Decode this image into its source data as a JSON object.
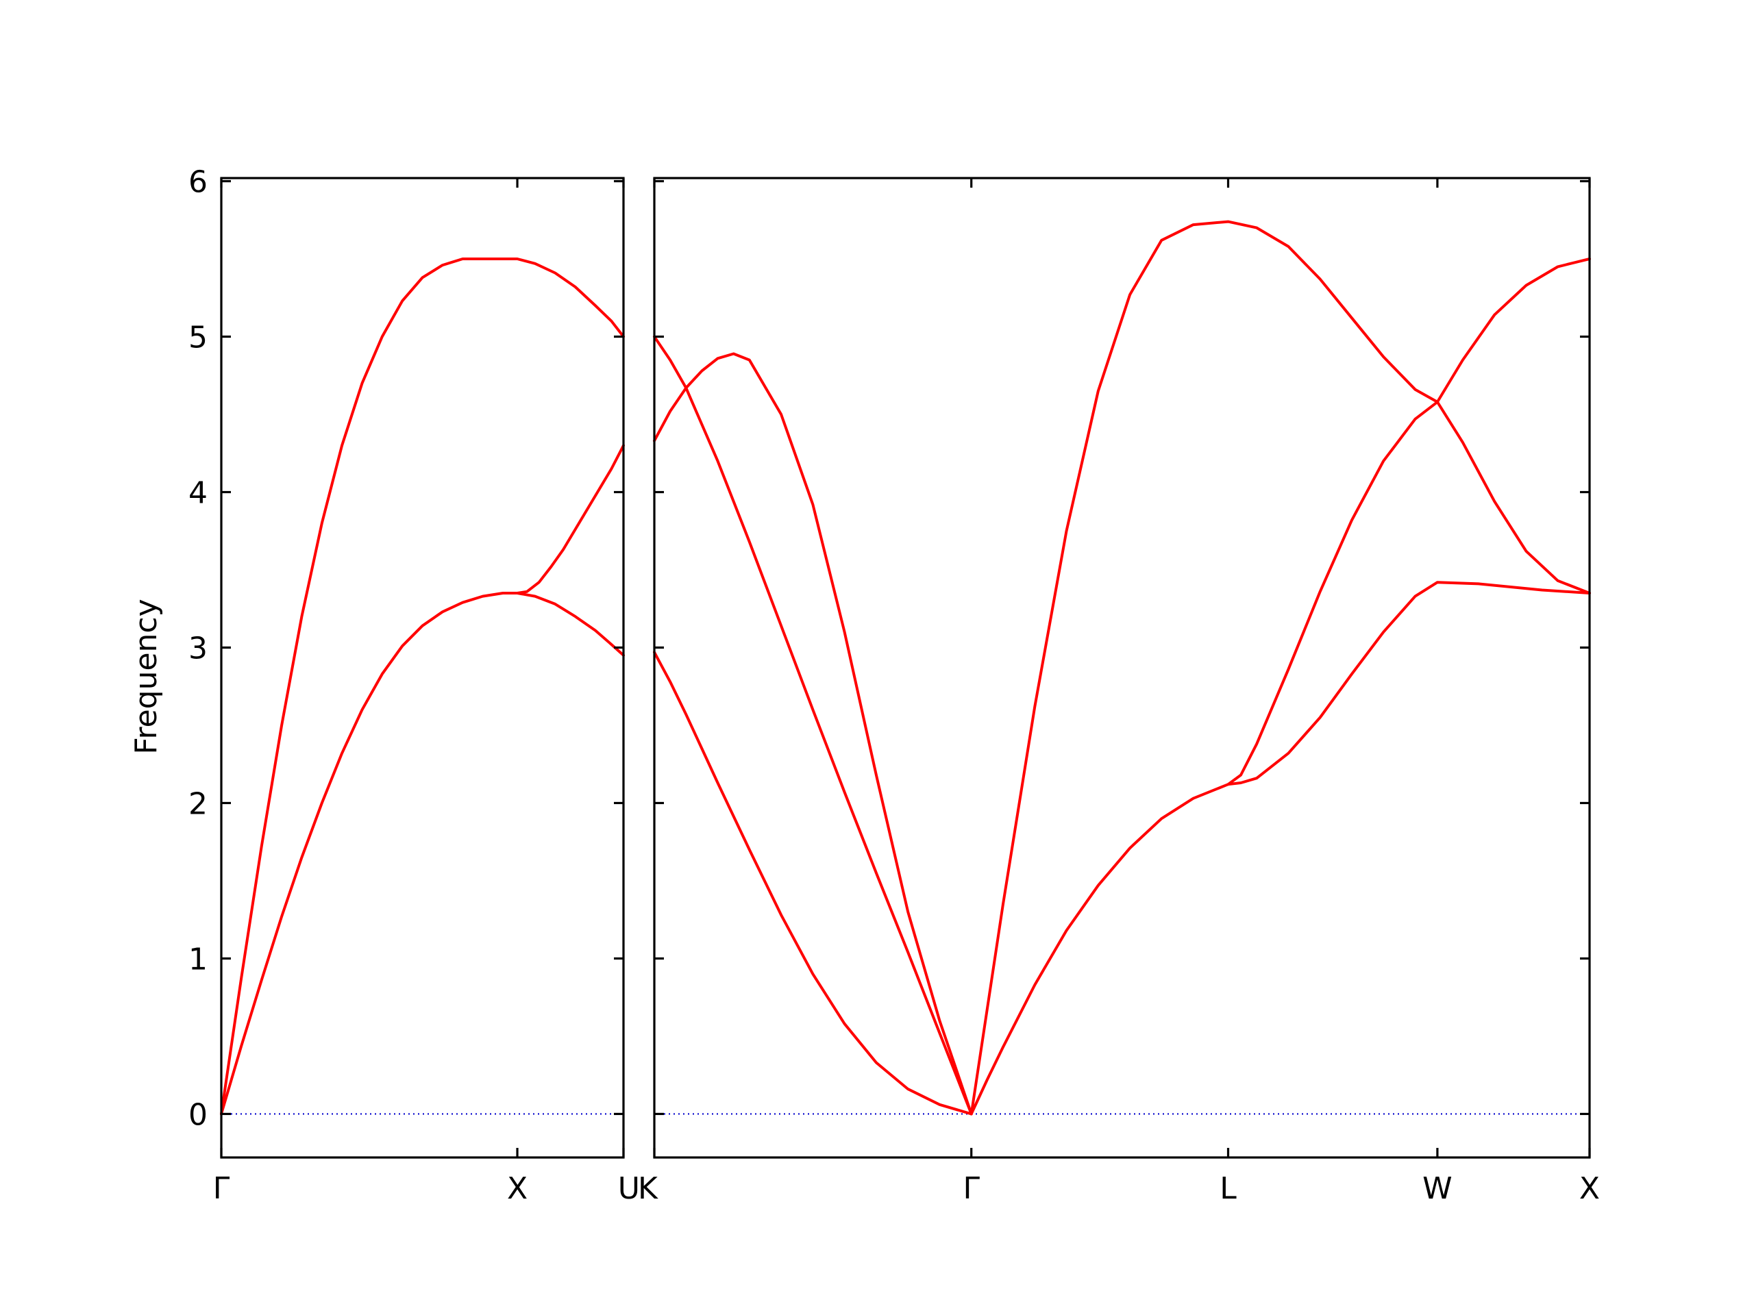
{
  "chart_data": {
    "type": "line",
    "title": "",
    "ylabel": "Frequency",
    "xlabel": "",
    "ylim": [
      -0.28,
      6.02
    ],
    "yticks": [
      0,
      1,
      2,
      3,
      4,
      5,
      6
    ],
    "grid": false,
    "legend": "none",
    "colors": {
      "band": "#ff0000",
      "zero_line": "#0000cc"
    },
    "segments": [
      {
        "xlim": [
          0,
          1.0
        ],
        "xticks": [
          {
            "x": 0,
            "label": "Γ"
          },
          {
            "x": 0.736,
            "label": "X"
          },
          {
            "x": 1.0,
            "label": "U"
          }
        ],
        "series": [
          {
            "points": [
              [
                0,
                0
              ],
              [
                0.05,
                0.44
              ],
              [
                0.1,
                0.86
              ],
              [
                0.15,
                1.27
              ],
              [
                0.2,
                1.65
              ],
              [
                0.25,
                2.0
              ],
              [
                0.3,
                2.32
              ],
              [
                0.35,
                2.6
              ],
              [
                0.4,
                2.83
              ],
              [
                0.45,
                3.01
              ],
              [
                0.5,
                3.14
              ],
              [
                0.55,
                3.23
              ],
              [
                0.6,
                3.29
              ],
              [
                0.65,
                3.33
              ],
              [
                0.7,
                3.35
              ],
              [
                0.736,
                3.35
              ],
              [
                0.78,
                3.33
              ],
              [
                0.83,
                3.28
              ],
              [
                0.88,
                3.2
              ],
              [
                0.93,
                3.11
              ],
              [
                0.97,
                3.02
              ],
              [
                1.0,
                2.95
              ]
            ]
          },
          {
            "points": [
              [
                0,
                0
              ],
              [
                0.05,
                0.88
              ],
              [
                0.1,
                1.72
              ],
              [
                0.15,
                2.5
              ],
              [
                0.2,
                3.2
              ],
              [
                0.25,
                3.8
              ],
              [
                0.3,
                4.3
              ],
              [
                0.35,
                4.7
              ],
              [
                0.4,
                5.0
              ],
              [
                0.45,
                5.23
              ],
              [
                0.5,
                5.38
              ],
              [
                0.55,
                5.46
              ],
              [
                0.6,
                5.5
              ],
              [
                0.65,
                5.5
              ],
              [
                0.7,
                5.5
              ],
              [
                0.736,
                5.5
              ],
              [
                0.78,
                5.47
              ],
              [
                0.83,
                5.41
              ],
              [
                0.88,
                5.32
              ],
              [
                0.93,
                5.2
              ],
              [
                0.97,
                5.1
              ],
              [
                1.0,
                5.0
              ]
            ]
          },
          {
            "points": [
              [
                0.736,
                3.35
              ],
              [
                0.76,
                3.36
              ],
              [
                0.79,
                3.42
              ],
              [
                0.82,
                3.52
              ],
              [
                0.85,
                3.63
              ],
              [
                0.88,
                3.76
              ],
              [
                0.91,
                3.89
              ],
              [
                0.94,
                4.02
              ],
              [
                0.97,
                4.15
              ],
              [
                1.0,
                4.3
              ]
            ]
          }
        ]
      },
      {
        "xlim": [
          0,
          2.95
        ],
        "xticks": [
          {
            "x": 0,
            "label": "K"
          },
          {
            "x": 1.0,
            "label": "Γ"
          },
          {
            "x": 1.81,
            "label": "L"
          },
          {
            "x": 2.47,
            "label": "W"
          },
          {
            "x": 2.95,
            "label": "X"
          }
        ],
        "series": [
          {
            "points": [
              [
                0,
                2.97
              ],
              [
                0.05,
                2.78
              ],
              [
                0.1,
                2.57
              ],
              [
                0.15,
                2.35
              ],
              [
                0.2,
                2.13
              ],
              [
                0.3,
                1.7
              ],
              [
                0.4,
                1.28
              ],
              [
                0.5,
                0.9
              ],
              [
                0.6,
                0.58
              ],
              [
                0.7,
                0.33
              ],
              [
                0.8,
                0.16
              ],
              [
                0.9,
                0.06
              ],
              [
                1.0,
                0
              ]
            ]
          },
          {
            "points": [
              [
                0,
                5.0
              ],
              [
                0.05,
                4.85
              ],
              [
                0.1,
                4.67
              ],
              [
                0.2,
                4.2
              ],
              [
                0.3,
                3.68
              ],
              [
                0.4,
                3.14
              ],
              [
                0.5,
                2.6
              ],
              [
                0.6,
                2.07
              ],
              [
                0.7,
                1.55
              ],
              [
                0.8,
                1.04
              ],
              [
                0.9,
                0.52
              ],
              [
                1.0,
                0
              ]
            ]
          },
          {
            "points": [
              [
                0,
                4.33
              ],
              [
                0.05,
                4.52
              ],
              [
                0.1,
                4.67
              ],
              [
                0.15,
                4.78
              ],
              [
                0.2,
                4.86
              ],
              [
                0.25,
                4.89
              ],
              [
                0.3,
                4.85
              ],
              [
                0.4,
                4.5
              ],
              [
                0.5,
                3.92
              ],
              [
                0.6,
                3.1
              ],
              [
                0.7,
                2.18
              ],
              [
                0.8,
                1.3
              ],
              [
                0.9,
                0.6
              ],
              [
                0.95,
                0.3
              ],
              [
                1.0,
                0
              ]
            ]
          },
          {
            "points": [
              [
                1.0,
                0
              ],
              [
                1.05,
                0.22
              ],
              [
                1.1,
                0.43
              ],
              [
                1.2,
                0.83
              ],
              [
                1.3,
                1.18
              ],
              [
                1.4,
                1.47
              ],
              [
                1.5,
                1.71
              ],
              [
                1.6,
                1.9
              ],
              [
                1.7,
                2.03
              ],
              [
                1.81,
                2.12
              ],
              [
                1.85,
                2.13
              ],
              [
                1.9,
                2.16
              ],
              [
                2.0,
                2.32
              ],
              [
                2.1,
                2.55
              ],
              [
                2.2,
                2.83
              ],
              [
                2.3,
                3.1
              ],
              [
                2.4,
                3.33
              ],
              [
                2.47,
                3.42
              ],
              [
                2.6,
                3.41
              ],
              [
                2.8,
                3.37
              ],
              [
                2.95,
                3.35
              ]
            ]
          },
          {
            "points": [
              [
                1.81,
                2.12
              ],
              [
                1.85,
                2.18
              ],
              [
                1.9,
                2.38
              ],
              [
                2.0,
                2.86
              ],
              [
                2.1,
                3.36
              ],
              [
                2.2,
                3.82
              ],
              [
                2.3,
                4.2
              ],
              [
                2.4,
                4.47
              ],
              [
                2.47,
                4.58
              ],
              [
                2.55,
                4.85
              ],
              [
                2.65,
                5.14
              ],
              [
                2.75,
                5.33
              ],
              [
                2.85,
                5.45
              ],
              [
                2.95,
                5.5
              ]
            ]
          },
          {
            "points": [
              [
                1.0,
                0
              ],
              [
                1.1,
                1.35
              ],
              [
                1.2,
                2.62
              ],
              [
                1.3,
                3.75
              ],
              [
                1.4,
                4.65
              ],
              [
                1.5,
                5.27
              ],
              [
                1.6,
                5.62
              ],
              [
                1.7,
                5.72
              ],
              [
                1.81,
                5.74
              ],
              [
                1.9,
                5.7
              ],
              [
                2.0,
                5.58
              ],
              [
                2.1,
                5.37
              ],
              [
                2.2,
                5.12
              ],
              [
                2.3,
                4.87
              ],
              [
                2.4,
                4.66
              ],
              [
                2.47,
                4.58
              ],
              [
                2.55,
                4.32
              ],
              [
                2.65,
                3.94
              ],
              [
                2.75,
                3.62
              ],
              [
                2.85,
                3.43
              ],
              [
                2.95,
                3.35
              ]
            ]
          }
        ]
      }
    ]
  }
}
